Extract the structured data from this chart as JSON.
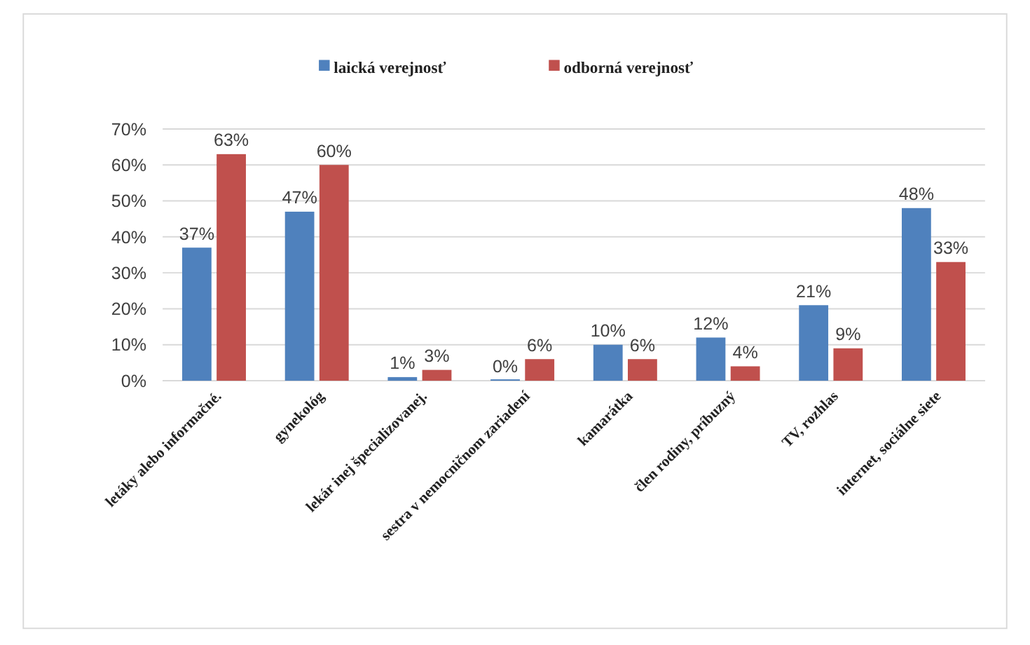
{
  "chart_data": {
    "type": "bar",
    "categories": [
      "letáky alebo informačné.",
      "gynekológ",
      "lekár inej špecializovanej.",
      "sestra v nemocničnom zariadení",
      "kamarátka",
      "člen rodiny, príbuzný",
      "TV, rozhlas",
      "internet, sociálne siete"
    ],
    "series": [
      {
        "name": "laická verejnosť",
        "color": "#4f81bd",
        "values": [
          37,
          47,
          1,
          0,
          10,
          12,
          21,
          48
        ],
        "value_labels": [
          "37%",
          "47%",
          "1%",
          "0%",
          "10%",
          "12%",
          "21%",
          "48%"
        ]
      },
      {
        "name": "odborná verejnosť",
        "color": "#c0504d",
        "values": [
          63,
          60,
          3,
          6,
          6,
          4,
          9,
          33
        ],
        "value_labels": [
          "63%",
          "60%",
          "3%",
          "6%",
          "6%",
          "4%",
          "9%",
          "33%"
        ]
      }
    ],
    "ylim": [
      0,
      70
    ],
    "yticks": [
      {
        "value": 0,
        "label": "0%"
      },
      {
        "value": 10,
        "label": "10%"
      },
      {
        "value": 20,
        "label": "20%"
      },
      {
        "value": 30,
        "label": "30%"
      },
      {
        "value": 40,
        "label": "40%"
      },
      {
        "value": 50,
        "label": "50%"
      },
      {
        "value": 60,
        "label": "60%"
      },
      {
        "value": 70,
        "label": "70%"
      }
    ],
    "grid": "y",
    "legend": "top"
  }
}
